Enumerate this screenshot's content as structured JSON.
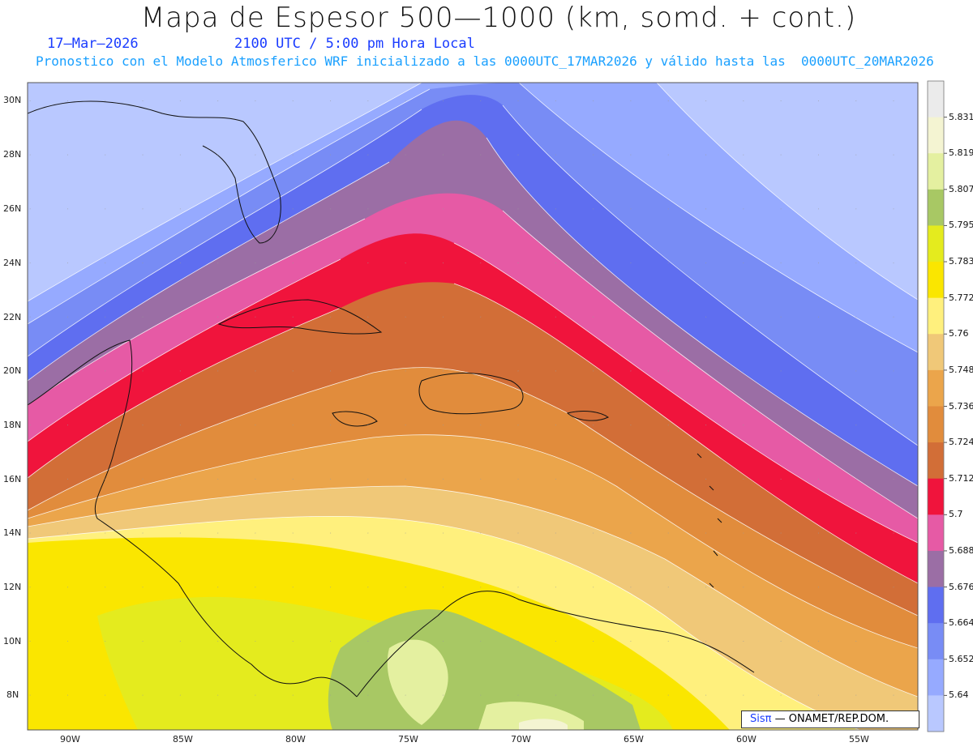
{
  "header": {
    "title": "Mapa de Espesor 500—1000 (km, somd. + cont.)",
    "date": "17—Mar—2026",
    "time": "2100 UTC / 5:00 pm Hora Local",
    "forecast": "Pronostico con el Modelo Atmosferico WRF inicializado a las 0000UTC_17MAR2026 y válido hasta las  0000UTC_20MAR2026"
  },
  "axes": {
    "lat_labels": [
      "30N",
      "28N",
      "26N",
      "24N",
      "22N",
      "20N",
      "18N",
      "16N",
      "14N",
      "12N",
      "10N",
      "8N"
    ],
    "lon_labels": [
      "90W",
      "85W",
      "80W",
      "75W",
      "70W",
      "65W",
      "60W",
      "55W"
    ]
  },
  "colorbar": {
    "labels": [
      "5.831",
      "5.819",
      "5.807",
      "5.795",
      "5.783",
      "5.772",
      "5.76",
      "5.748",
      "5.736",
      "5.724",
      "5.712",
      "5.7",
      "5.688",
      "5.676",
      "5.664",
      "5.652",
      "5.64"
    ],
    "colors": [
      "#ebebeb",
      "#f4f4d2",
      "#e4f0a0",
      "#a8c864",
      "#e4eb1e",
      "#fae600",
      "#fff07d",
      "#f0c878",
      "#eba54b",
      "#e18c3c",
      "#d26e37",
      "#f0143c",
      "#e65aa5",
      "#9b6ea5",
      "#5f6ef0",
      "#788cf5",
      "#96aaff",
      "#b9c8ff"
    ]
  },
  "credit": {
    "brand": "Sisπ",
    "text": "— ONAMET/REP.DOM."
  }
}
